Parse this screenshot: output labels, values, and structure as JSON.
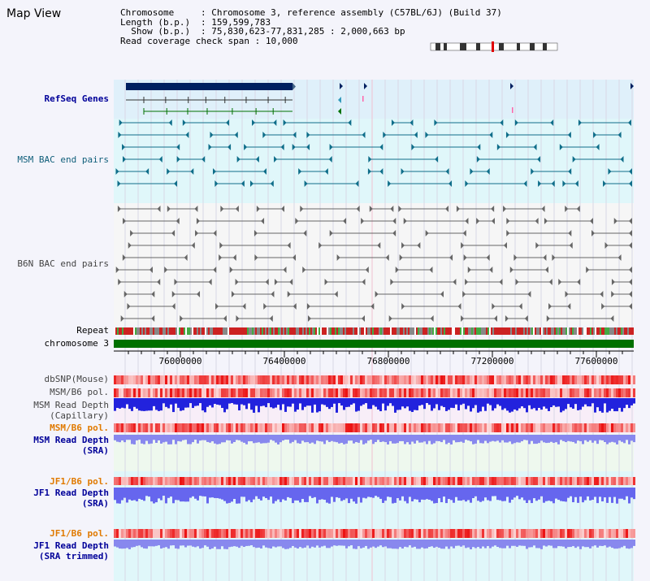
{
  "title": "Map View",
  "info": [
    {
      "key": "Chromosome",
      "value": "Chromosome 3, reference assembly (C57BL/6J) (Build 37)"
    },
    {
      "key": "Length (b.p.)",
      "value": "159,599,783"
    },
    {
      "key": "  Show (b.p.)",
      "value": "75,830,623-77,831,285 : 2,000,663 bp"
    },
    {
      "key": "Read coverage check span",
      "value": "10,000"
    }
  ],
  "tracks": {
    "refseq": "RefSeq Genes",
    "msm_bac": "MSM BAC end pairs",
    "b6n_bac": "B6N BAC end pairs",
    "repeat": "Repeat",
    "chromosome": "chromosome 3",
    "dbsnp": "dbSNP(Mouse)",
    "msm_b6_pol_1": "MSM/B6 pol.",
    "msm_read_depth_cap_1": "MSM Read Depth",
    "msm_read_depth_cap_2": "(Capillary)",
    "msm_b6_pol_2": "MSM/B6 pol.",
    "msm_read_depth_sra_1": "MSM Read Depth",
    "msm_read_depth_sra_2": "(SRA)",
    "jf1_b6_pol_1": "JF1/B6 pol.",
    "jf1_read_depth_sra_1": "JF1 Read Depth",
    "jf1_read_depth_sra_2": "(SRA)",
    "jf1_b6_pol_2": "JF1/B6 pol.",
    "jf1_read_depth_trim_1": "JF1 Read Depth",
    "jf1_read_depth_trim_2": "(SRA trimmed)"
  },
  "axis": {
    "ticks": [
      "76000000",
      "76400000",
      "76800000",
      "77200000",
      "77600000"
    ]
  },
  "colors": {
    "panel_blue": "#dff0fa",
    "panel_cyan": "#e0f7fa",
    "panel_gray": "#f6f6f6",
    "gene_navy": "#002060",
    "gene_teal": "#0f6e8a",
    "chromosome_green": "#007000",
    "depth_blue": "#2222dd",
    "depth_light": "#8888ee",
    "snp_red": "#ee5555"
  }
}
